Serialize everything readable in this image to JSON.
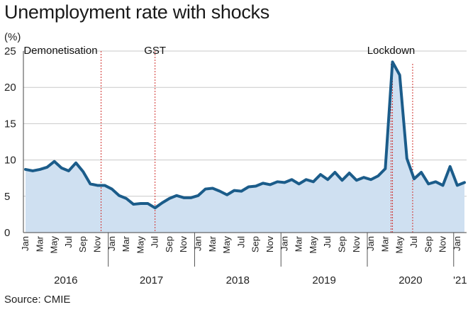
{
  "chart_data": {
    "type": "area",
    "title": "Unemployment rate with shocks",
    "ylabel": "(%)",
    "xlabel": "",
    "ylim": [
      0,
      25
    ],
    "yticks": [
      0,
      5,
      10,
      15,
      20,
      25
    ],
    "grid": true,
    "x": [
      "2016-01",
      "2016-02",
      "2016-03",
      "2016-04",
      "2016-05",
      "2016-06",
      "2016-07",
      "2016-08",
      "2016-09",
      "2016-10",
      "2016-11",
      "2016-12",
      "2017-01",
      "2017-02",
      "2017-03",
      "2017-04",
      "2017-05",
      "2017-06",
      "2017-07",
      "2017-08",
      "2017-09",
      "2017-10",
      "2017-11",
      "2017-12",
      "2018-01",
      "2018-02",
      "2018-03",
      "2018-04",
      "2018-05",
      "2018-06",
      "2018-07",
      "2018-08",
      "2018-09",
      "2018-10",
      "2018-11",
      "2018-12",
      "2019-01",
      "2019-02",
      "2019-03",
      "2019-04",
      "2019-05",
      "2019-06",
      "2019-07",
      "2019-08",
      "2019-09",
      "2019-10",
      "2019-11",
      "2019-12",
      "2020-01",
      "2020-02",
      "2020-03",
      "2020-04",
      "2020-05",
      "2020-06",
      "2020-07",
      "2020-08",
      "2020-09",
      "2020-10",
      "2020-11",
      "2020-12",
      "2021-01",
      "2021-02"
    ],
    "values": [
      8.7,
      8.5,
      8.7,
      9.0,
      9.8,
      8.9,
      8.5,
      9.6,
      8.4,
      6.7,
      6.5,
      6.5,
      6.0,
      5.1,
      4.7,
      3.9,
      4.0,
      4.0,
      3.4,
      4.1,
      4.7,
      5.1,
      4.8,
      4.8,
      5.1,
      6.0,
      6.1,
      5.7,
      5.2,
      5.8,
      5.7,
      6.3,
      6.4,
      6.8,
      6.6,
      7.0,
      6.9,
      7.3,
      6.7,
      7.3,
      7.0,
      8.0,
      7.3,
      8.3,
      7.2,
      8.2,
      7.2,
      7.6,
      7.3,
      7.8,
      8.8,
      23.5,
      21.7,
      10.2,
      7.4,
      8.3,
      6.7,
      7.0,
      6.5,
      9.1,
      6.5,
      6.9
    ],
    "month_ticks": [
      "Jan",
      "Mar",
      "May",
      "Jul",
      "Sep",
      "Nov"
    ],
    "year_groups": [
      {
        "label": "2016",
        "start": 0,
        "end": 11
      },
      {
        "label": "2017",
        "start": 12,
        "end": 23
      },
      {
        "label": "2018",
        "start": 24,
        "end": 35
      },
      {
        "label": "2019",
        "start": 36,
        "end": 47
      },
      {
        "label": "2020",
        "start": 48,
        "end": 59
      },
      {
        "label": "'21",
        "start": 60,
        "end": 61
      }
    ],
    "annotations": [
      {
        "label": "Demonetisation",
        "index": 10.5,
        "anchor": "end"
      },
      {
        "label": "GST",
        "index": 18,
        "anchor": "middle"
      },
      {
        "label": "Lockdown",
        "index": 50.8,
        "anchor": "middle"
      },
      {
        "label": "",
        "index": 51,
        "anchor": "none"
      },
      {
        "label": "",
        "index": 53.8,
        "anchor": "none"
      }
    ],
    "colors": {
      "line": "#1b5c8a",
      "area": "#cfe0f1",
      "grid": "#c9c9c9",
      "shock": "#d0312d"
    }
  },
  "source": "Source: CMIE"
}
